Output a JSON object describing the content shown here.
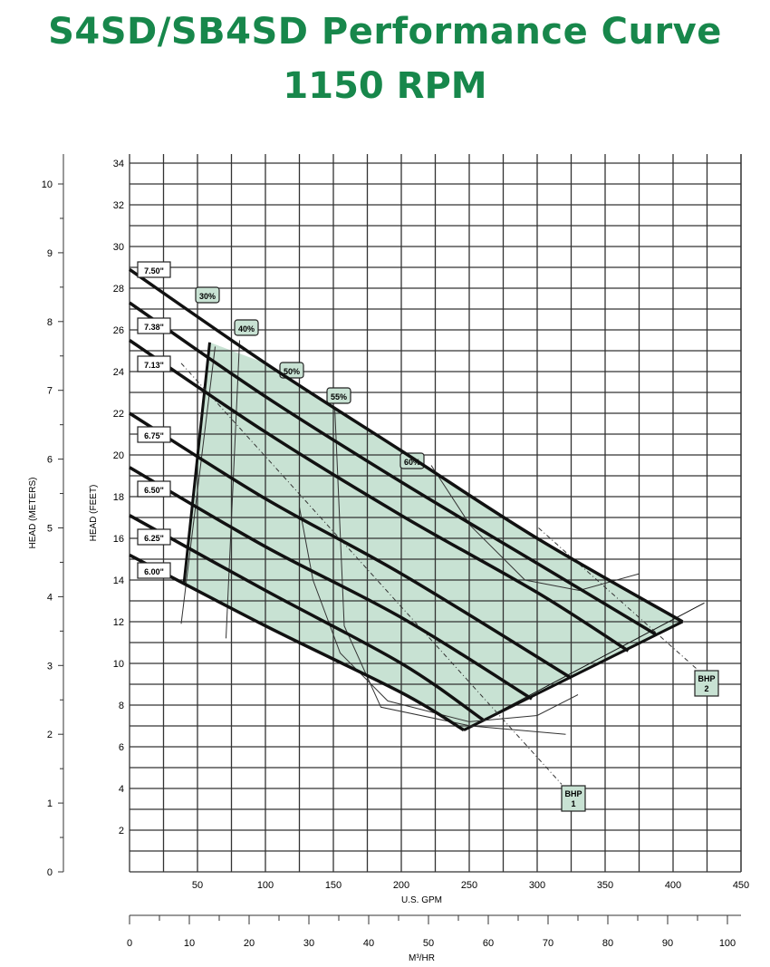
{
  "chart_data": {
    "type": "line",
    "title": "S4SD/SB4SD Performance Curve",
    "subtitle": "1150 RPM",
    "xlabel": "U.S. GPM",
    "xlabel2": "M³/HR",
    "ylabel": "HEAD (FEET)",
    "ylabel2": "HEAD (METERS)",
    "xlim": [
      0,
      450
    ],
    "ylim": [
      0,
      34.5
    ],
    "x_ticks": [
      50,
      100,
      150,
      200,
      250,
      300,
      350,
      400,
      450
    ],
    "x2_ticks": [
      0,
      10,
      20,
      30,
      40,
      50,
      60,
      70,
      80,
      90,
      100
    ],
    "y_ticks": [
      2,
      4,
      6,
      8,
      10,
      12,
      14,
      16,
      18,
      20,
      22,
      24,
      26,
      28,
      30,
      32,
      34
    ],
    "y2_ticks": [
      0,
      1,
      2,
      3,
      4,
      5,
      6,
      7,
      8,
      9,
      10
    ],
    "grid": true,
    "shade_color": "#c8e2d3",
    "title_color": "#17874b",
    "impeller_curves": [
      {
        "name": "7.50\"",
        "points": [
          [
            0,
            28.9
          ],
          [
            100,
            24.4
          ],
          [
            200,
            20.2
          ],
          [
            300,
            16.0
          ],
          [
            407,
            12.0
          ]
        ]
      },
      {
        "name": "7.38\"",
        "points": [
          [
            0,
            27.3
          ],
          [
            100,
            22.8
          ],
          [
            200,
            18.7
          ],
          [
            300,
            14.8
          ],
          [
            387,
            11.4
          ]
        ]
      },
      {
        "name": "7.13\"",
        "points": [
          [
            0,
            25.5
          ],
          [
            100,
            21.1
          ],
          [
            200,
            17.1
          ],
          [
            300,
            13.4
          ],
          [
            367,
            10.6
          ]
        ]
      },
      {
        "name": "6.75\"",
        "points": [
          [
            0,
            22.0
          ],
          [
            100,
            17.9
          ],
          [
            200,
            14.3
          ],
          [
            325,
            9.3
          ]
        ]
      },
      {
        "name": "6.50\"",
        "points": [
          [
            0,
            19.4
          ],
          [
            100,
            15.6
          ],
          [
            200,
            12.2
          ],
          [
            296,
            8.3
          ]
        ]
      },
      {
        "name": "6.25\"",
        "points": [
          [
            0,
            17.1
          ],
          [
            100,
            13.5
          ],
          [
            200,
            10.0
          ],
          [
            260,
            7.3
          ]
        ]
      },
      {
        "name": "6.00\"",
        "points": [
          [
            0,
            15.2
          ],
          [
            100,
            11.8
          ],
          [
            200,
            8.6
          ],
          [
            246,
            6.8
          ]
        ]
      }
    ],
    "operating_region": [
      [
        40,
        13.8
      ],
      [
        59,
        25.4
      ],
      [
        100,
        24.4
      ],
      [
        200,
        20.2
      ],
      [
        300,
        16.0
      ],
      [
        407,
        12.0
      ],
      [
        246,
        6.8
      ],
      [
        200,
        8.6
      ],
      [
        100,
        11.8
      ]
    ],
    "efficiency_curves": [
      {
        "name": "30%",
        "points": [
          [
            63,
            25.2
          ],
          [
            38,
            11.9
          ]
        ]
      },
      {
        "name": "40%",
        "points": [
          [
            81,
            25.5
          ],
          [
            71,
            11.2
          ]
        ]
      },
      {
        "name": "50%",
        "points": [
          [
            125,
            23.6
          ],
          [
            125,
            17.5
          ],
          [
            135,
            14
          ],
          [
            155,
            10.5
          ],
          [
            190,
            8.2
          ],
          [
            250,
            7.2
          ],
          [
            300,
            7.5
          ],
          [
            330,
            8.5
          ]
        ]
      },
      {
        "name": "55%",
        "points": [
          [
            151,
            22.3
          ],
          [
            158,
            11.8
          ],
          [
            185,
            7.9
          ],
          [
            251,
            7.0
          ],
          [
            321,
            6.6
          ]
        ]
      },
      {
        "name": "60%",
        "points": [
          [
            222,
            19.5
          ],
          [
            251,
            16.6
          ],
          [
            291,
            14.0
          ],
          [
            331,
            13.5
          ],
          [
            375,
            14.3
          ]
        ]
      }
    ],
    "bhp_curves": [
      {
        "name": "BHP 1",
        "label_line1": "BHP",
        "label_line2": "1",
        "points": [
          [
            38,
            24.4
          ],
          [
            318,
            4.2
          ]
        ]
      },
      {
        "name": "BHP 2",
        "label_line1": "BHP",
        "label_line2": "2",
        "points": [
          [
            301,
            16.5
          ],
          [
            418,
            9.7
          ]
        ]
      }
    ]
  }
}
